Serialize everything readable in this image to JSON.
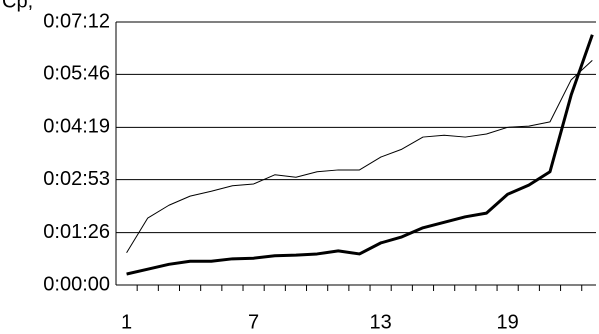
{
  "chart_data": {
    "type": "line",
    "title": "Ср,",
    "categories": [
      "1",
      null,
      null,
      null,
      null,
      null,
      "7",
      null,
      null,
      null,
      null,
      null,
      "13",
      null,
      null,
      null,
      null,
      null,
      "19",
      null,
      null,
      null,
      null
    ],
    "series": [
      {
        "color": "#000000",
        "line_width": 1,
        "values": [
          53,
          110,
          131,
          146,
          154,
          163,
          166,
          181,
          177,
          186,
          189,
          189,
          210,
          223,
          243,
          246,
          243,
          248,
          259,
          261,
          268,
          337,
          369
        ]
      },
      {
        "color": "#000000",
        "line_width": 3,
        "values": [
          18,
          26,
          34,
          39,
          39,
          43,
          44,
          48,
          49,
          51,
          56,
          51,
          69,
          79,
          94,
          103,
          112,
          118,
          149,
          164,
          186,
          312,
          411
        ]
      }
    ],
    "ylim": [
      0,
      432
    ],
    "yticks": [
      {
        "value": 0,
        "label": "0:00:00"
      },
      {
        "value": 86,
        "label": "0:01:26"
      },
      {
        "value": 173,
        "label": "0:02:53"
      },
      {
        "value": 259,
        "label": "0:04:19"
      },
      {
        "value": 346,
        "label": "0:05:46"
      },
      {
        "value": 432,
        "label": "0:07:12"
      }
    ],
    "grid": true
  }
}
